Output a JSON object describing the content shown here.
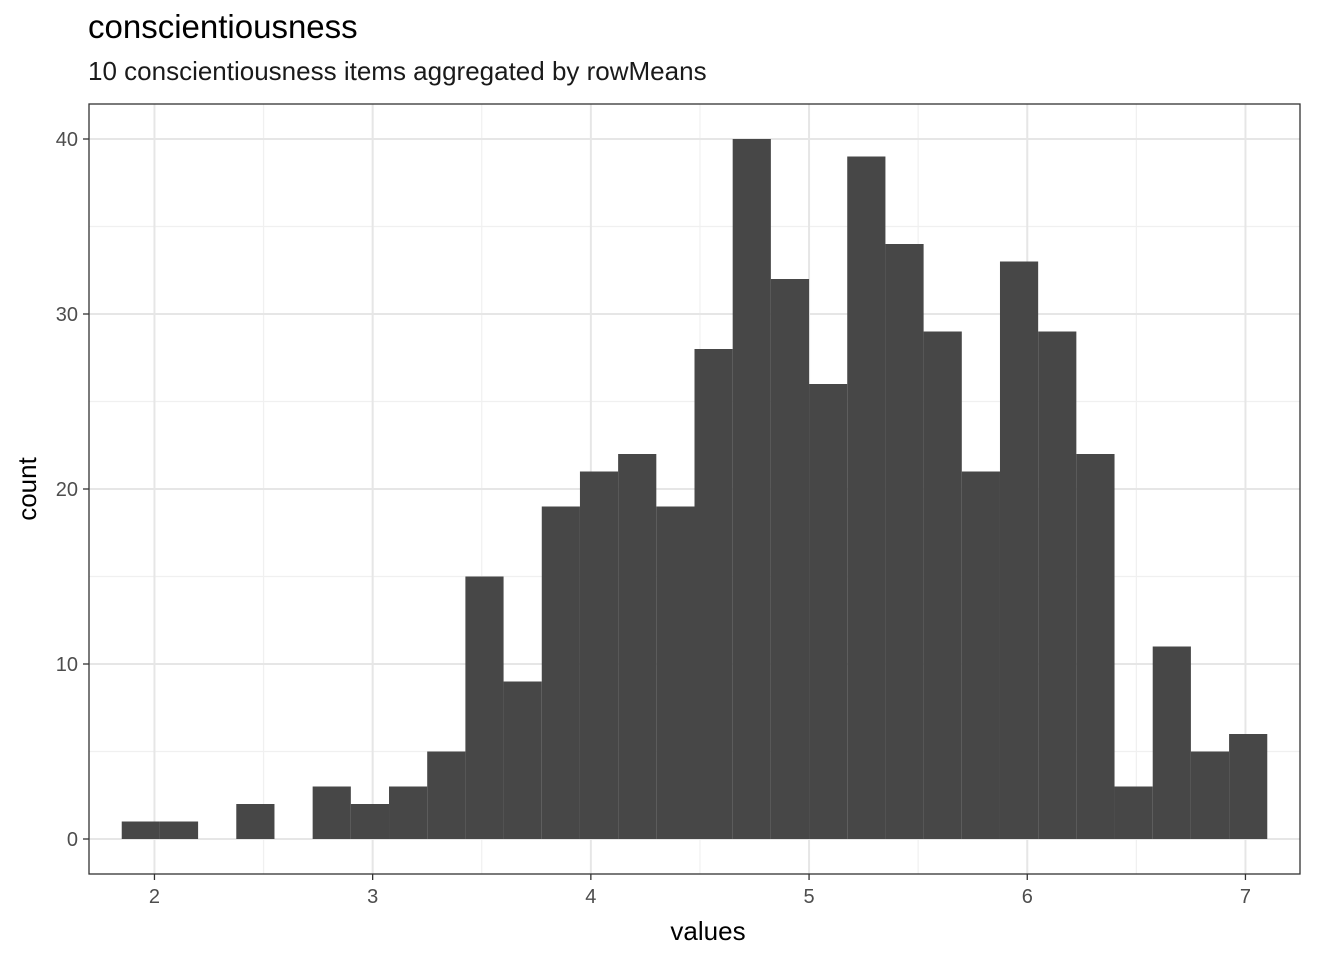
{
  "chart_data": {
    "type": "bar",
    "title": "conscientiousness",
    "subtitle": "10 conscientiousness items aggregated by rowMeans",
    "xlabel": "values",
    "ylabel": "count",
    "xlim": [
      1.7,
      7.25
    ],
    "ylim": [
      -2,
      42
    ],
    "x_ticks": [
      2,
      3,
      4,
      5,
      6,
      7
    ],
    "y_ticks": [
      0,
      10,
      20,
      30,
      40
    ],
    "grid": true,
    "legend": "none",
    "bar_color": "#474747",
    "bins": [
      {
        "x0": 1.85,
        "x1": 2.025,
        "count": 1
      },
      {
        "x0": 2.025,
        "x1": 2.2,
        "count": 1
      },
      {
        "x0": 2.2,
        "x1": 2.375,
        "count": 0
      },
      {
        "x0": 2.375,
        "x1": 2.55,
        "count": 2
      },
      {
        "x0": 2.55,
        "x1": 2.725,
        "count": 0
      },
      {
        "x0": 2.725,
        "x1": 2.9,
        "count": 3
      },
      {
        "x0": 2.9,
        "x1": 3.075,
        "count": 2
      },
      {
        "x0": 3.075,
        "x1": 3.25,
        "count": 3
      },
      {
        "x0": 3.25,
        "x1": 3.425,
        "count": 5
      },
      {
        "x0": 3.425,
        "x1": 3.6,
        "count": 15
      },
      {
        "x0": 3.6,
        "x1": 3.775,
        "count": 9
      },
      {
        "x0": 3.775,
        "x1": 3.95,
        "count": 19
      },
      {
        "x0": 3.95,
        "x1": 4.125,
        "count": 21
      },
      {
        "x0": 4.125,
        "x1": 4.3,
        "count": 22
      },
      {
        "x0": 4.3,
        "x1": 4.475,
        "count": 19
      },
      {
        "x0": 4.475,
        "x1": 4.65,
        "count": 28
      },
      {
        "x0": 4.65,
        "x1": 4.825,
        "count": 40
      },
      {
        "x0": 4.825,
        "x1": 5.0,
        "count": 32
      },
      {
        "x0": 5.0,
        "x1": 5.175,
        "count": 26
      },
      {
        "x0": 5.175,
        "x1": 5.35,
        "count": 39
      },
      {
        "x0": 5.35,
        "x1": 5.525,
        "count": 34
      },
      {
        "x0": 5.525,
        "x1": 5.7,
        "count": 29
      },
      {
        "x0": 5.7,
        "x1": 5.875,
        "count": 21
      },
      {
        "x0": 5.875,
        "x1": 6.05,
        "count": 33
      },
      {
        "x0": 6.05,
        "x1": 6.225,
        "count": 29
      },
      {
        "x0": 6.225,
        "x1": 6.4,
        "count": 22
      },
      {
        "x0": 6.4,
        "x1": 6.575,
        "count": 3
      },
      {
        "x0": 6.575,
        "x1": 6.75,
        "count": 11
      },
      {
        "x0": 6.75,
        "x1": 6.925,
        "count": 5
      },
      {
        "x0": 6.925,
        "x1": 7.1,
        "count": 6
      }
    ]
  }
}
